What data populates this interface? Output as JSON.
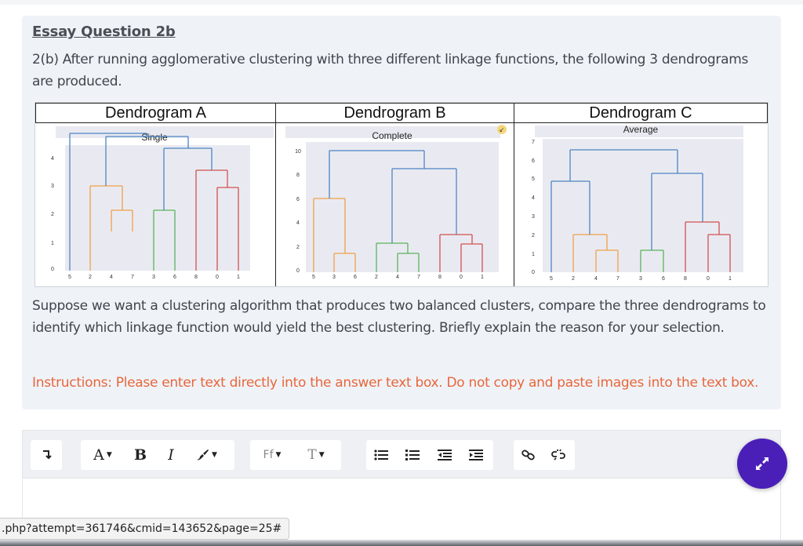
{
  "question": {
    "title": "Essay Question 2b",
    "intro": "2(b) After running agglomerative clustering with three different linkage functions, the following 3 dendrograms are produced.",
    "prompt": "Suppose we want a clustering algorithm that produces two balanced clusters, compare the three dendrograms to identify which linkage function would yield the best clustering. Briefly explain the reason for your selection.",
    "instructions": "Instructions: Please enter text directly into the answer text box. Do not copy and paste images into the text box."
  },
  "dendrograms": [
    {
      "header": "Dendrogram A",
      "plot_title": "Single",
      "y_ticks": [
        "0",
        "1",
        "2",
        "3",
        "4"
      ],
      "x_labels": [
        "5",
        "2",
        "4",
        "7",
        "3",
        "6",
        "8",
        "0",
        "1"
      ]
    },
    {
      "header": "Dendrogram B",
      "plot_title": "Complete",
      "y_ticks": [
        "0",
        "2",
        "4",
        "6",
        "8",
        "10"
      ],
      "x_labels": [
        "5",
        "3",
        "6",
        "2",
        "4",
        "7",
        "8",
        "0",
        "1"
      ]
    },
    {
      "header": "Dendrogram C",
      "plot_title": "Average",
      "y_ticks": [
        "0",
        "1",
        "2",
        "3",
        "4",
        "5",
        "6",
        "7"
      ],
      "x_labels": [
        "5",
        "2",
        "4",
        "7",
        "3",
        "6",
        "8",
        "0",
        "1"
      ]
    }
  ],
  "colors": {
    "accent": "#4a1fb8",
    "instructions": "#e8663a",
    "orange": "#f0a14a",
    "green": "#5cb25c",
    "red": "#d25151",
    "blue": "#4d84c4"
  },
  "toolbar": {
    "text_color_label": "A",
    "bold_label": "B",
    "italic_label": "I",
    "font_family_label": "Ff",
    "font_size_label": "T",
    "icons": [
      "paragraph-icon",
      "text-color-icon",
      "bold-icon",
      "italic-icon",
      "brush-icon",
      "font-family-icon",
      "font-size-icon",
      "unordered-list-icon",
      "ordered-list-icon",
      "outdent-icon",
      "indent-icon",
      "link-icon",
      "unlink-icon"
    ]
  },
  "status_url": ".php?attempt=361746&cmid=143652&page=25#"
}
